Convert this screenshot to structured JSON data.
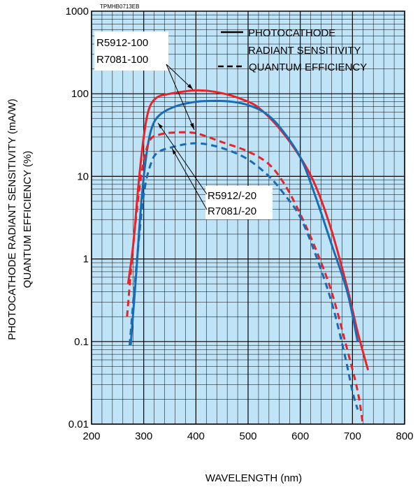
{
  "chart_data": {
    "type": "line",
    "figure_id": "TPMHB0713EB",
    "xlabel": "WAVELENGTH (nm)",
    "ylabel_line1": "PHOTOCATHODE RADIANT SENSITIVITY (mA/W)",
    "ylabel_line2": "QUANTUM EFFICIENCY (%)",
    "x_scale": "linear",
    "y_scale": "log",
    "xlim": [
      200,
      800
    ],
    "ylim": [
      0.01,
      1000
    ],
    "grid": true,
    "background_color": "#bfe3f7",
    "x_ticks": [
      "200",
      "300",
      "400",
      "500",
      "600",
      "700",
      "800"
    ],
    "y_ticks": [
      "0.01",
      "0.1",
      "1",
      "10",
      "100",
      "1000"
    ],
    "legend": {
      "placement": "top-right",
      "solid_label_line1": "PHOTOCATHODE",
      "solid_label_line2": "RADIANT SENSITIVITY",
      "dashed_label": "QUANTUM EFFICIENCY"
    },
    "annotations": {
      "top_label_1": "R5912-100",
      "top_label_2": "R7081-100",
      "bottom_label_1": "R5912/-20",
      "bottom_label_2": "R7081/-20"
    },
    "series": [
      {
        "model": "R5912-100 / R7081-100",
        "quantity": "radiant sensitivity",
        "color": "#e8232a",
        "style": "solid",
        "points": [
          [
            270,
            0.5
          ],
          [
            280,
            1.5
          ],
          [
            290,
            8
          ],
          [
            300,
            30
          ],
          [
            310,
            65
          ],
          [
            325,
            90
          ],
          [
            350,
            100
          ],
          [
            380,
            107
          ],
          [
            400,
            110
          ],
          [
            430,
            107
          ],
          [
            460,
            98
          ],
          [
            490,
            85
          ],
          [
            520,
            68
          ],
          [
            560,
            38
          ],
          [
            600,
            17
          ],
          [
            630,
            7.5
          ],
          [
            660,
            2.2
          ],
          [
            690,
            0.45
          ],
          [
            710,
            0.13
          ],
          [
            730,
            0.045
          ]
        ]
      },
      {
        "model": "R5912/-20 / R7081/-20",
        "quantity": "radiant sensitivity",
        "color": "#1a6bb5",
        "style": "solid",
        "points": [
          [
            275,
            0.09
          ],
          [
            285,
            0.6
          ],
          [
            295,
            4.5
          ],
          [
            305,
            18
          ],
          [
            315,
            38
          ],
          [
            330,
            55
          ],
          [
            360,
            70
          ],
          [
            400,
            80
          ],
          [
            440,
            82
          ],
          [
            470,
            80
          ],
          [
            500,
            73
          ],
          [
            530,
            60
          ],
          [
            560,
            40
          ],
          [
            600,
            17
          ],
          [
            630,
            5.5
          ],
          [
            660,
            1.5
          ],
          [
            690,
            0.4
          ],
          [
            710,
            0.1
          ]
        ]
      },
      {
        "model": "R5912-100 / R7081-100",
        "quantity": "quantum efficiency",
        "color": "#e8232a",
        "style": "dashed",
        "points": [
          [
            268,
            0.2
          ],
          [
            280,
            1.5
          ],
          [
            295,
            10
          ],
          [
            310,
            26
          ],
          [
            330,
            32
          ],
          [
            360,
            34
          ],
          [
            390,
            34
          ],
          [
            410,
            32
          ],
          [
            450,
            26
          ],
          [
            500,
            20
          ],
          [
            540,
            14
          ],
          [
            570,
            8
          ],
          [
            600,
            3.5
          ],
          [
            630,
            1.3
          ],
          [
            660,
            0.4
          ],
          [
            690,
            0.08
          ],
          [
            710,
            0.025
          ],
          [
            720,
            0.01
          ]
        ]
      },
      {
        "model": "R5912/-20 / R7081/-20",
        "quantity": "quantum efficiency",
        "color": "#1a6bb5",
        "style": "dashed",
        "points": [
          [
            273,
            0.09
          ],
          [
            285,
            0.7
          ],
          [
            300,
            6
          ],
          [
            315,
            15
          ],
          [
            330,
            20
          ],
          [
            360,
            23
          ],
          [
            390,
            25
          ],
          [
            420,
            24.5
          ],
          [
            460,
            21
          ],
          [
            500,
            16
          ],
          [
            540,
            10
          ],
          [
            570,
            6
          ],
          [
            600,
            3.2
          ],
          [
            630,
            1.1
          ],
          [
            660,
            0.3
          ],
          [
            685,
            0.07
          ],
          [
            700,
            0.025
          ],
          [
            710,
            0.015
          ]
        ]
      }
    ]
  }
}
